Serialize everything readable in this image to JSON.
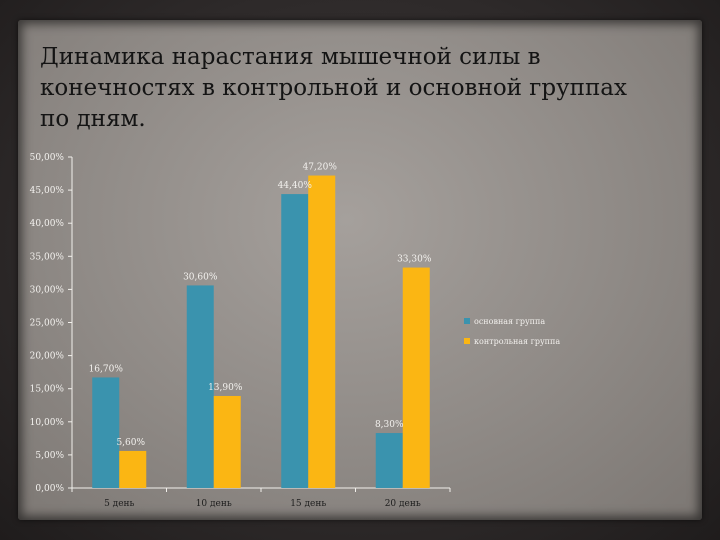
{
  "slide": {
    "title": "Динамика нарастания мышечной силы в конечностях в контрольной и основной группах по дням."
  },
  "chart_data": {
    "type": "bar",
    "categories": [
      "5 день",
      "10 день",
      "15 день",
      "20 день"
    ],
    "series": [
      {
        "name": "основная группа",
        "color": "#3a93ae",
        "values": [
          16.7,
          30.6,
          44.4,
          8.3
        ],
        "labels": [
          "16,70%",
          "30,60%",
          "44,40%",
          "8,30%"
        ]
      },
      {
        "name": "контрольная группа",
        "color": "#fbb613",
        "values": [
          5.6,
          13.9,
          47.2,
          33.3
        ],
        "labels": [
          "5,60%",
          "13,90%",
          "47,20%",
          "33,30%"
        ]
      }
    ],
    "ylim": [
      0,
      50
    ],
    "yticks": [
      "0,00%",
      "5,00%",
      "10,00%",
      "15,00%",
      "20,00%",
      "25,00%",
      "30,00%",
      "35,00%",
      "40,00%",
      "45,00%",
      "50,00%"
    ],
    "grid": false,
    "legend_position": "right"
  }
}
